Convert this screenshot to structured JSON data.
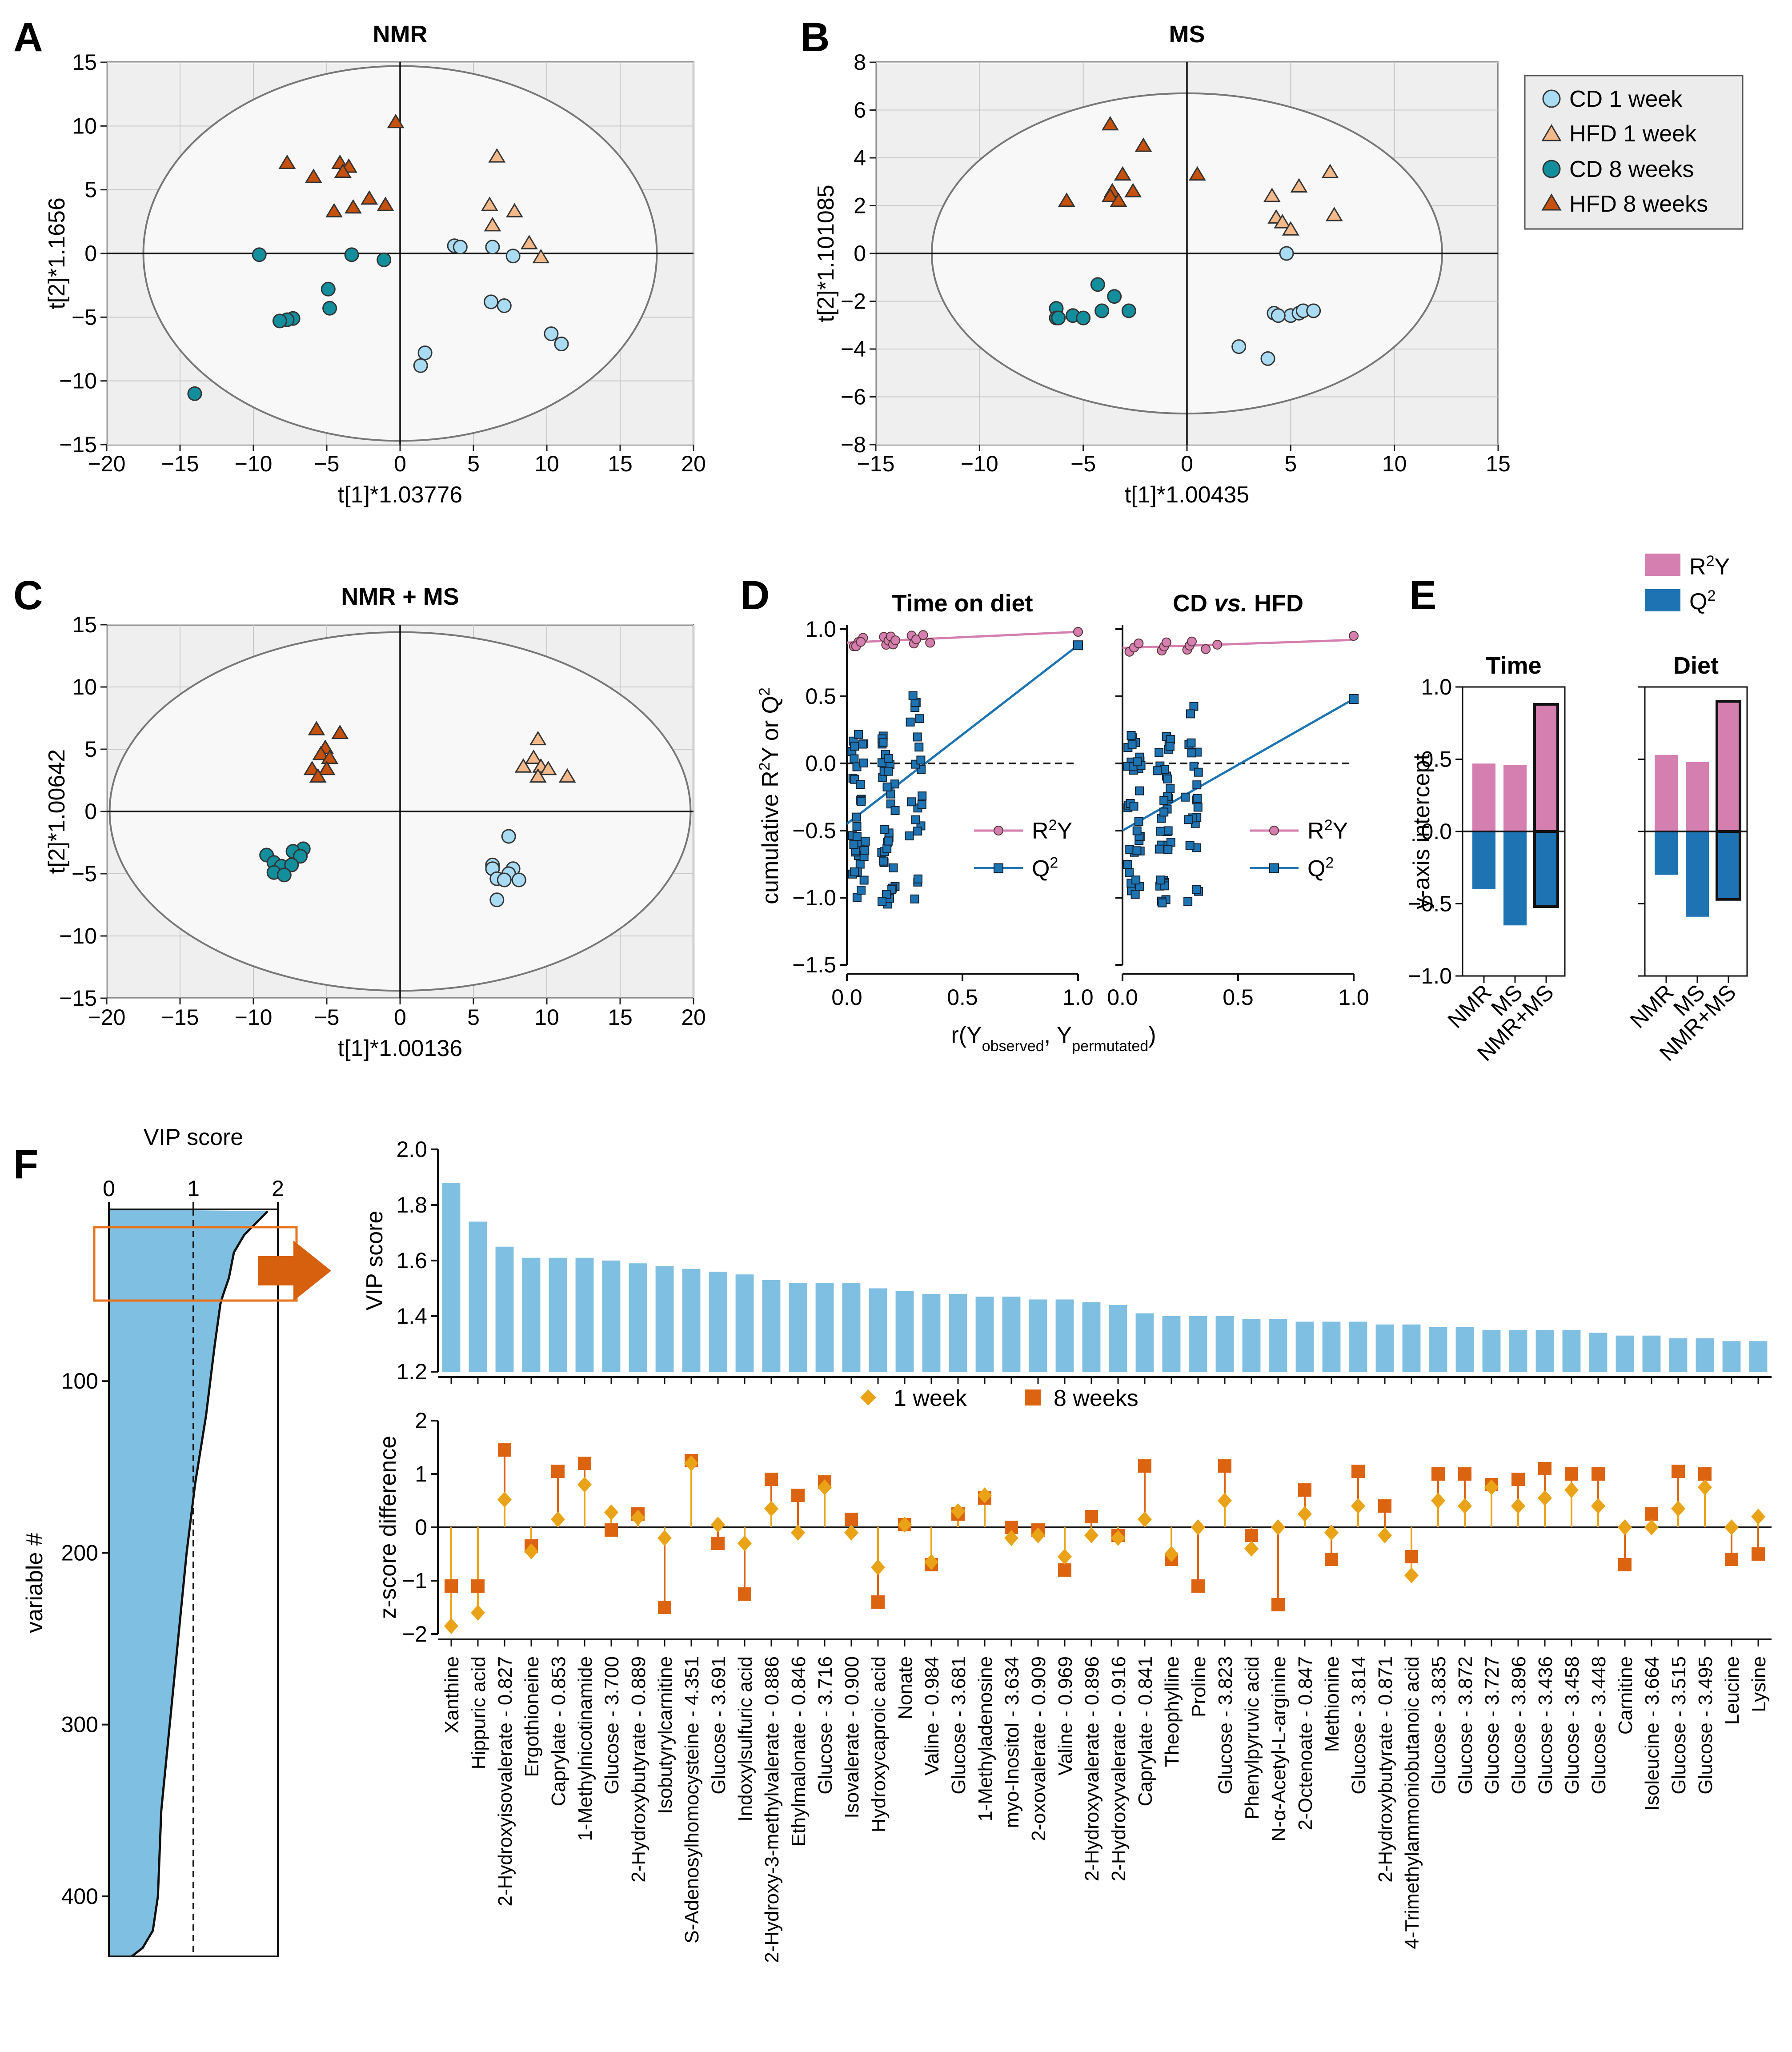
{
  "panel_letters": [
    "A",
    "B",
    "C",
    "D",
    "E",
    "F"
  ],
  "colors": {
    "cd1": "#a9dbf3",
    "hfd1": "#f4b98b",
    "cd8": "#138e9c",
    "hfd8": "#c5510c",
    "r2y": "#d47fb0",
    "q2": "#1e74b3",
    "vipbar": "#7fbfe2",
    "zw1": "#eaa316",
    "zw8": "#dc6411",
    "arrow": "#d7600f",
    "box": "#e8731e"
  },
  "legend_scores": [
    "CD 1 week",
    "HFD 1 week",
    "CD 8 weeks",
    "HFD 8 weeks"
  ],
  "chart_data": [
    {
      "id": "A",
      "type": "scatter",
      "title": "NMR",
      "xlabel": "t[1]*1.03776",
      "ylabel": "t[2]*1.1656",
      "xlim": [
        -20,
        20
      ],
      "ylim": [
        -15,
        15
      ],
      "xticks": [
        -20,
        -15,
        -10,
        -5,
        0,
        5,
        10,
        15,
        20
      ],
      "yticks": [
        -15,
        -10,
        -5,
        0,
        5,
        10,
        15
      ],
      "series": [
        {
          "name": "CD 1 week",
          "points": [
            [
              3.7,
              0.6
            ],
            [
              4.1,
              0.5
            ],
            [
              6.3,
              0.5
            ],
            [
              7.7,
              -0.2
            ],
            [
              6.2,
              -3.8
            ],
            [
              7.1,
              -4.1
            ],
            [
              10.3,
              -6.3
            ],
            [
              11.0,
              -7.1
            ],
            [
              1.7,
              -7.8
            ],
            [
              1.4,
              -8.8
            ]
          ]
        },
        {
          "name": "HFD 1 week",
          "points": [
            [
              6.1,
              3.8
            ],
            [
              7.8,
              3.3
            ],
            [
              6.6,
              7.6
            ],
            [
              6.3,
              2.2
            ],
            [
              8.8,
              0.8
            ],
            [
              9.6,
              -0.3
            ]
          ]
        },
        {
          "name": "CD 8 weeks",
          "points": [
            [
              -9.6,
              -0.1
            ],
            [
              -3.3,
              -0.1
            ],
            [
              -1.1,
              -0.5
            ],
            [
              -4.9,
              -2.8
            ],
            [
              -4.8,
              -4.3
            ],
            [
              -7.3,
              -5.1
            ],
            [
              -7.7,
              -5.2
            ],
            [
              -8.2,
              -5.3
            ],
            [
              -14.0,
              -11.0
            ]
          ]
        },
        {
          "name": "HFD 8 weeks",
          "points": [
            [
              -7.7,
              7.1
            ],
            [
              -4.1,
              7.1
            ],
            [
              -3.5,
              6.8
            ],
            [
              -3.9,
              6.4
            ],
            [
              -2.1,
              4.3
            ],
            [
              -5.9,
              6.0
            ],
            [
              -3.2,
              3.6
            ],
            [
              -1.0,
              3.8
            ],
            [
              -4.5,
              3.3
            ],
            [
              -0.3,
              10.3
            ]
          ]
        }
      ],
      "ellipse": {
        "rx": 17.5,
        "ry": 14.7
      }
    },
    {
      "id": "B",
      "type": "scatter",
      "title": "MS",
      "xlabel": "t[1]*1.00435",
      "ylabel": "t[2]*1.101085",
      "xlim": [
        -15,
        15
      ],
      "ylim": [
        -8,
        8
      ],
      "xticks": [
        -15,
        -10,
        -5,
        0,
        5,
        10,
        15
      ],
      "yticks": [
        -8,
        -6,
        -4,
        -2,
        0,
        2,
        4,
        6,
        8
      ],
      "series": [
        {
          "name": "CD 1 week",
          "points": [
            [
              4.8,
              0.0
            ],
            [
              4.2,
              -2.5
            ],
            [
              5.0,
              -2.6
            ],
            [
              5.4,
              -2.5
            ],
            [
              5.6,
              -2.4
            ],
            [
              6.1,
              -2.4
            ],
            [
              2.5,
              -3.9
            ],
            [
              3.9,
              -4.4
            ],
            [
              4.4,
              -2.6
            ]
          ]
        },
        {
          "name": "HFD 1 week",
          "points": [
            [
              4.1,
              2.4
            ],
            [
              5.4,
              2.8
            ],
            [
              6.9,
              3.4
            ],
            [
              7.1,
              1.6
            ],
            [
              4.3,
              1.5
            ],
            [
              4.6,
              1.3
            ],
            [
              5.0,
              1.0
            ]
          ]
        },
        {
          "name": "CD 8 weeks",
          "points": [
            [
              -6.3,
              -2.3
            ],
            [
              -6.3,
              -2.7
            ],
            [
              -5.5,
              -2.6
            ],
            [
              -5.0,
              -2.7
            ],
            [
              -4.3,
              -1.3
            ],
            [
              -4.1,
              -2.4
            ],
            [
              -3.5,
              -1.8
            ],
            [
              -2.8,
              -2.4
            ],
            [
              -6.2,
              -2.7
            ]
          ]
        },
        {
          "name": "HFD 8 weeks",
          "points": [
            [
              -3.7,
              5.4
            ],
            [
              -2.1,
              4.5
            ],
            [
              -3.1,
              3.3
            ],
            [
              -3.6,
              2.6
            ],
            [
              -3.7,
              2.4
            ],
            [
              -2.6,
              2.6
            ],
            [
              -5.8,
              2.2
            ],
            [
              -3.3,
              2.2
            ],
            [
              0.5,
              3.3
            ]
          ]
        }
      ],
      "ellipse": {
        "rx": 12.3,
        "ry": 6.7
      }
    },
    {
      "id": "C",
      "type": "scatter",
      "title": "NMR + MS",
      "xlabel": "t[1]*1.00136",
      "ylabel": "t[2]*1.00642",
      "xlim": [
        -20,
        20
      ],
      "ylim": [
        -15,
        15
      ],
      "xticks": [
        -20,
        -15,
        -10,
        -5,
        0,
        5,
        10,
        15,
        20
      ],
      "yticks": [
        -15,
        -10,
        -5,
        0,
        5,
        10,
        15
      ],
      "series": [
        {
          "name": "CD 1 week",
          "points": [
            [
              7.4,
              -2.0
            ],
            [
              6.3,
              -4.3
            ],
            [
              6.3,
              -4.6
            ],
            [
              7.7,
              -4.6
            ],
            [
              7.4,
              -5.0
            ],
            [
              6.6,
              -5.4
            ],
            [
              7.1,
              -5.5
            ],
            [
              8.1,
              -5.5
            ],
            [
              6.6,
              -7.1
            ]
          ]
        },
        {
          "name": "HFD 1 week",
          "points": [
            [
              9.4,
              5.8
            ],
            [
              9.1,
              4.3
            ],
            [
              8.4,
              3.6
            ],
            [
              9.6,
              3.6
            ],
            [
              10.1,
              3.4
            ],
            [
              11.4,
              2.8
            ],
            [
              9.4,
              2.8
            ]
          ]
        },
        {
          "name": "CD 8 weeks",
          "points": [
            [
              -9.1,
              -3.5
            ],
            [
              -6.6,
              -3.0
            ],
            [
              -7.3,
              -3.2
            ],
            [
              -6.8,
              -3.6
            ],
            [
              -8.6,
              -4.1
            ],
            [
              -8.1,
              -4.4
            ],
            [
              -7.4,
              -4.3
            ],
            [
              -8.6,
              -4.9
            ],
            [
              -7.9,
              -5.1
            ]
          ]
        },
        {
          "name": "HFD 8 weeks",
          "points": [
            [
              -5.7,
              6.6
            ],
            [
              -4.1,
              6.3
            ],
            [
              -5.1,
              5.1
            ],
            [
              -5.4,
              4.6
            ],
            [
              -4.8,
              4.3
            ],
            [
              -6.0,
              3.4
            ],
            [
              -5.0,
              3.4
            ],
            [
              -5.6,
              2.8
            ]
          ]
        }
      ],
      "ellipse": {
        "rx": 19.8,
        "ry": 14.4
      }
    },
    {
      "id": "D",
      "type": "scatter",
      "title": "Time on diet",
      "xlim": [
        0,
        1.0
      ],
      "ylim": [
        -1.5,
        1.0
      ],
      "xticks": [
        0.0,
        0.5,
        1.0
      ],
      "yticks": [
        -1.5,
        -1.0,
        -0.5,
        0.0,
        0.5,
        1.0
      ],
      "r2y_line": [
        [
          0,
          0.9
        ],
        [
          1.0,
          0.98
        ]
      ],
      "q2_line": [
        [
          0,
          -0.45
        ],
        [
          1.0,
          0.88
        ]
      ],
      "r2y_points_x": [
        0.03,
        0.05,
        0.07,
        0.04,
        0.06,
        0.16,
        0.17,
        0.18,
        0.19,
        0.2,
        0.21,
        0.28,
        0.29,
        0.3,
        0.33,
        0.36,
        1.0
      ],
      "q2_cluster_x": [
        0.05,
        0.18,
        0.3
      ]
    },
    {
      "id": "D2",
      "type": "scatter",
      "title_prefix": "CD ",
      "title_italic": "vs.",
      "title_suffix": " HFD",
      "xlim": [
        0,
        1.0
      ],
      "ylim": [
        -1.5,
        1.0
      ],
      "xticks": [
        0.0,
        0.5,
        1.0
      ],
      "r2y_line": [
        [
          0,
          0.86
        ],
        [
          1.0,
          0.92
        ]
      ],
      "q2_line": [
        [
          0,
          -0.5
        ],
        [
          1.0,
          0.48
        ]
      ],
      "r2y_points_x": [
        0.03,
        0.05,
        0.07,
        0.17,
        0.18,
        0.19,
        0.28,
        0.29,
        0.3,
        0.36,
        0.41,
        1.0
      ],
      "q2_cluster_x": [
        0.05,
        0.18,
        0.3
      ]
    },
    {
      "id": "E",
      "type": "bar",
      "ylabel": "y-axis intercept",
      "ylim": [
        -1.0,
        1.0
      ],
      "yticks": [
        -1.0,
        -0.5,
        0.0,
        0.5,
        1.0
      ],
      "categories": [
        "NMR",
        "MS",
        "NMR+MS"
      ],
      "groups": [
        {
          "title": "Time",
          "r2y": [
            0.47,
            0.46,
            0.88
          ],
          "q2": [
            -0.4,
            -0.65,
            -0.52
          ]
        },
        {
          "title": "Diet",
          "r2y": [
            0.53,
            0.48,
            0.9
          ],
          "q2": [
            -0.3,
            -0.59,
            -0.47
          ]
        }
      ],
      "legend": [
        "R²Y",
        "Q²"
      ]
    },
    {
      "id": "F-overview",
      "type": "area",
      "title": "VIP score",
      "ylabel": "variable #",
      "xlim": [
        0,
        2
      ],
      "xticks": [
        0,
        1,
        2
      ],
      "yticks": [
        100,
        200,
        300,
        400
      ],
      "n_variables": 435,
      "threshold": 1,
      "curve": [
        [
          1.88,
          1
        ],
        [
          1.6,
          15
        ],
        [
          1.48,
          25
        ],
        [
          1.42,
          40
        ],
        [
          1.35,
          50
        ],
        [
          1.32,
          55
        ],
        [
          1.25,
          80
        ],
        [
          1.15,
          120
        ],
        [
          1.02,
          160
        ],
        [
          0.92,
          200
        ],
        [
          0.82,
          250
        ],
        [
          0.72,
          300
        ],
        [
          0.62,
          350
        ],
        [
          0.58,
          400
        ],
        [
          0.52,
          420
        ],
        [
          0.4,
          430
        ],
        [
          0.27,
          435
        ]
      ]
    },
    {
      "id": "F-vip",
      "type": "bar",
      "ylabel": "VIP score",
      "ylim": [
        1.2,
        2.0
      ],
      "yticks": [
        1.2,
        1.4,
        1.6,
        1.8,
        2.0
      ],
      "categories": [
        "Xanthine",
        "Hippuric acid",
        "2-Hydroxyisovalerate - 0.827",
        "Ergothioneine",
        "Caprylate - 0.853",
        "1-Methylnicotinamide",
        "Glucose - 3.700",
        "2-Hydroxybutyrate - 0.889",
        "Isobutyrylcarnitine",
        "S-Adenosylhomocysteine - 4.351",
        "Glucose - 3.691",
        "Indoxylsulfuric acid",
        "2-Hydroxy-3-methylvalerate - 0.886",
        "Ethylmalonate - 0.846",
        "Glucose - 3.716",
        "Isovalerate - 0.900",
        "Hydroxycaproic acid",
        "Nonate",
        "Valine - 0.984",
        "Glucose - 3.681",
        "1-Methyladenosine",
        "myo-Inositol - 3.634",
        "2-oxovalerate - 0.909",
        "Valine - 0.969",
        "2-Hydroxyvalerate - 0.896",
        "2-Hydroxyvalerate - 0.916",
        "Caprylate - 0.841",
        "Theophylline",
        "Proline",
        "Glucose - 3.823",
        "Phenylpyruvic acid",
        "N-α-Acetyl-L-arginine",
        "2-Octenoate - 0.847",
        "Methionine",
        "Glucose - 3.814",
        "2-Hydroxybutyrate - 0.871",
        "4-Trimethylammoniobutanoic acid",
        "Glucose - 3.835",
        "Glucose - 3.872",
        "Glucose - 3.727",
        "Glucose - 3.896",
        "Glucose - 3.436",
        "Glucose - 3.458",
        "Glucose - 3.448",
        "Carnitine",
        "Isoleucine - 3.664",
        "Glucose - 3.515",
        "Glucose - 3.495",
        "Leucine",
        "Lysine"
      ],
      "values": [
        1.88,
        1.74,
        1.65,
        1.61,
        1.61,
        1.61,
        1.6,
        1.59,
        1.58,
        1.57,
        1.56,
        1.55,
        1.53,
        1.52,
        1.52,
        1.52,
        1.5,
        1.49,
        1.48,
        1.48,
        1.47,
        1.47,
        1.46,
        1.46,
        1.45,
        1.44,
        1.41,
        1.4,
        1.4,
        1.4,
        1.39,
        1.39,
        1.38,
        1.38,
        1.38,
        1.37,
        1.37,
        1.36,
        1.36,
        1.35,
        1.35,
        1.35,
        1.35,
        1.34,
        1.33,
        1.33,
        1.32,
        1.32,
        1.31,
        1.31
      ]
    },
    {
      "id": "F-z",
      "type": "scatter",
      "ylabel": "z-score difference",
      "ylim": [
        -2,
        2
      ],
      "yticks": [
        -2,
        -1,
        0,
        1,
        2
      ],
      "series": [
        {
          "name": "1 week",
          "values": [
            -1.85,
            -1.6,
            0.52,
            -0.45,
            0.15,
            0.8,
            0.28,
            0.18,
            -0.2,
            1.2,
            0.05,
            -0.3,
            0.35,
            -0.1,
            0.75,
            -0.1,
            -0.75,
            0.05,
            -0.65,
            0.3,
            0.6,
            -0.2,
            -0.15,
            -0.55,
            -0.15,
            -0.2,
            0.15,
            -0.5,
            0.0,
            0.5,
            -0.4,
            0.0,
            0.25,
            -0.1,
            0.4,
            -0.15,
            -0.9,
            0.5,
            0.4,
            0.75,
            0.4,
            0.55,
            0.7,
            0.4,
            0.0,
            0.0,
            0.35,
            0.75,
            0.0,
            0.2
          ]
        },
        {
          "name": "8 weeks",
          "values": [
            -1.1,
            -1.1,
            1.45,
            -0.35,
            1.05,
            1.2,
            -0.05,
            0.25,
            -1.5,
            1.25,
            -0.3,
            -1.25,
            0.9,
            0.6,
            0.85,
            0.15,
            -1.4,
            0.05,
            -0.7,
            0.25,
            0.55,
            0.0,
            -0.05,
            -0.8,
            0.2,
            -0.15,
            1.15,
            -0.6,
            -1.1,
            1.15,
            -0.15,
            -1.45,
            0.7,
            -0.6,
            1.05,
            0.4,
            -0.55,
            1.0,
            1.0,
            0.8,
            0.9,
            1.1,
            1.0,
            1.0,
            -0.7,
            0.25,
            1.05,
            1.0,
            -0.6,
            -0.5
          ]
        }
      ]
    }
  ],
  "ui_text": {
    "d_ylabel_prefix": "cumulative R",
    "d_ylabel_mid": "Y or Q",
    "d_xlabel_r": "r(Y",
    "d_xlabel_obs": "observed",
    "d_xlabel_comma": ",  Y",
    "d_xlabel_perm": "permutated",
    "d_xlabel_close": ")",
    "r2y_R": "R",
    "r2y_Y": "Y",
    "q2_Q": "Q",
    "sup2": "2"
  }
}
